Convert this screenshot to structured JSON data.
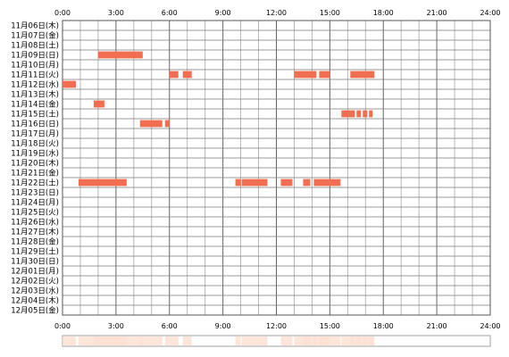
{
  "chart_data": {
    "type": "timeline",
    "x_unit": "hour of day",
    "xlim": [
      0,
      24
    ],
    "x_ticks": [
      "0:00",
      "3:00",
      "6:00",
      "9:00",
      "12:00",
      "15:00",
      "18:00",
      "21:00",
      "24:00"
    ],
    "grid": true,
    "bar_color": "#f26e50",
    "summary_color": "#fde0d4",
    "rows": [
      {
        "label": "11月06日(木)",
        "intervals": []
      },
      {
        "label": "11月07日(金)",
        "intervals": []
      },
      {
        "label": "11月08日(土)",
        "intervals": []
      },
      {
        "label": "11月09日(日)",
        "intervals": [
          [
            2.0,
            4.5
          ]
        ]
      },
      {
        "label": "11月10日(月)",
        "intervals": []
      },
      {
        "label": "11月11日(火)",
        "intervals": [
          [
            6.0,
            6.5
          ],
          [
            6.75,
            7.25
          ],
          [
            13.0,
            14.25
          ],
          [
            14.4,
            15.0
          ],
          [
            16.15,
            17.5
          ]
        ]
      },
      {
        "label": "11月12日(水)",
        "intervals": [
          [
            0.0,
            0.75
          ]
        ]
      },
      {
        "label": "11月13日(木)",
        "intervals": []
      },
      {
        "label": "11月14日(金)",
        "intervals": [
          [
            1.75,
            2.35
          ]
        ]
      },
      {
        "label": "11月15日(土)",
        "intervals": [
          [
            15.65,
            16.4
          ],
          [
            16.5,
            16.75
          ],
          [
            16.85,
            17.1
          ],
          [
            17.2,
            17.4
          ]
        ]
      },
      {
        "label": "11月16日(日)",
        "intervals": [
          [
            4.35,
            5.6
          ],
          [
            5.75,
            6.0
          ]
        ]
      },
      {
        "label": "11月17日(月)",
        "intervals": []
      },
      {
        "label": "11月18日(火)",
        "intervals": []
      },
      {
        "label": "11月19日(水)",
        "intervals": []
      },
      {
        "label": "11月20日(木)",
        "intervals": []
      },
      {
        "label": "11月21日(金)",
        "intervals": []
      },
      {
        "label": "11月22日(土)",
        "intervals": [
          [
            0.9,
            3.6
          ],
          [
            9.7,
            10.0
          ],
          [
            10.05,
            11.5
          ],
          [
            12.25,
            12.9
          ],
          [
            13.5,
            13.9
          ],
          [
            14.1,
            15.6
          ]
        ]
      },
      {
        "label": "11月23日(日)",
        "intervals": []
      },
      {
        "label": "11月24日(月)",
        "intervals": []
      },
      {
        "label": "11月25日(火)",
        "intervals": []
      },
      {
        "label": "11月26日(水)",
        "intervals": []
      },
      {
        "label": "11月27日(木)",
        "intervals": []
      },
      {
        "label": "11月28日(金)",
        "intervals": []
      },
      {
        "label": "11月29日(土)",
        "intervals": []
      },
      {
        "label": "11月30日(日)",
        "intervals": []
      },
      {
        "label": "12月01日(月)",
        "intervals": []
      },
      {
        "label": "12月02日(火)",
        "intervals": []
      },
      {
        "label": "12月03日(水)",
        "intervals": []
      },
      {
        "label": "12月04日(木)",
        "intervals": []
      },
      {
        "label": "12月05日(金)",
        "intervals": []
      }
    ]
  }
}
